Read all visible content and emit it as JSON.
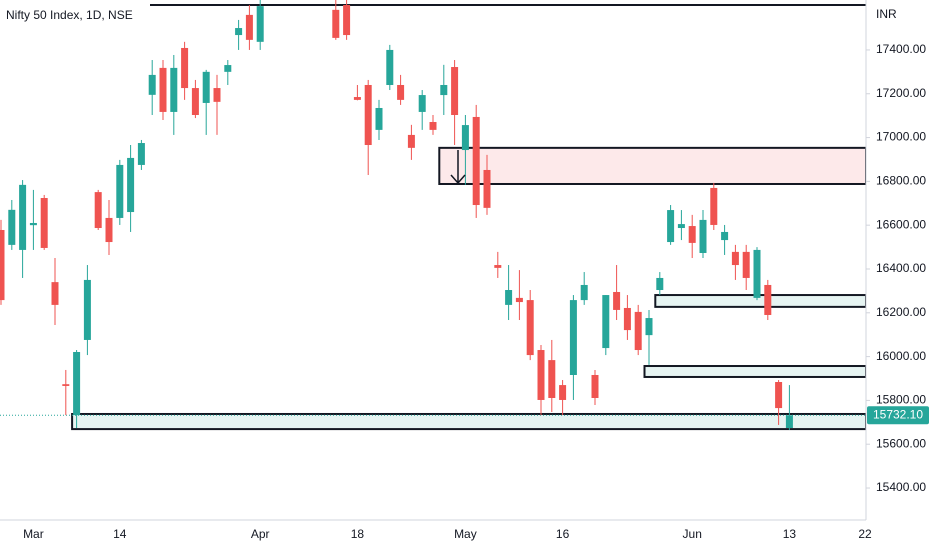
{
  "chart_data": {
    "type": "candlestick",
    "title": "Nifty 50 Index, 1D, NSE",
    "y_axis_label": "INR",
    "categories": [
      null,
      null,
      null,
      "Mar",
      null,
      null,
      null,
      null,
      null,
      null,
      null,
      "14",
      null,
      null,
      null,
      null,
      null,
      null,
      null,
      null,
      null,
      null,
      null,
      null,
      "Apr",
      null,
      null,
      null,
      null,
      null,
      null,
      null,
      null,
      "18",
      null,
      null,
      null,
      null,
      null,
      null,
      null,
      null,
      null,
      "May",
      null,
      null,
      null,
      null,
      null,
      null,
      null,
      null,
      "16",
      null,
      null,
      null,
      null,
      null,
      null,
      null,
      null,
      null,
      null,
      null,
      "Jun",
      null,
      null,
      null,
      null,
      null,
      null,
      null,
      null,
      "13",
      null,
      null,
      null,
      null,
      null,
      null,
      "22"
    ],
    "open": [
      16578,
      16510,
      16487,
      16600,
      16724,
      16340,
      15874,
      15733,
      16076,
      16751,
      16633,
      16633,
      16660,
      16875,
      17195,
      17318,
      17117,
      17409,
      17226,
      17158,
      17226,
      17300,
      17468,
      17560,
      17437,
      null,
      null,
      null,
      null,
      null,
      null,
      17583,
      17605,
      17185,
      17240,
      17035,
      17240,
      17240,
      17012,
      17117,
      17071,
      17194,
      17322,
      16943,
      17094,
      16852,
      16418,
      16236,
      16268,
      16258,
      16030,
      15984,
      15870,
      15916,
      16258,
      15916,
      16039,
      16295,
      16222,
      16204,
      16098,
      16304,
      16523,
      16587,
      16596,
      16473,
      16770,
      16532,
      16478,
      16478,
      16268,
      16327,
      15884,
      15674,
      null,
      null,
      null,
      null,
      null,
      null,
      null
    ],
    "high": [
      16624,
      16715,
      16806,
      16761,
      16738,
      16450,
      15939,
      16030,
      16418,
      16761,
      16715,
      16898,
      16966,
      16989,
      17354,
      17354,
      17377,
      17437,
      17263,
      17309,
      17286,
      17354,
      17537,
      17605,
      17628,
      null,
      null,
      null,
      null,
      null,
      null,
      17628,
      17628,
      17240,
      17263,
      17172,
      17423,
      17286,
      17058,
      17217,
      17103,
      17332,
      17354,
      17103,
      17149,
      16921,
      16478,
      16418,
      16395,
      16304,
      16053,
      16076,
      15893,
      16281,
      16386,
      15939,
      16281,
      16418,
      16281,
      16236,
      16213,
      16386,
      16692,
      16669,
      16647,
      16669,
      16793,
      16601,
      16510,
      16510,
      16500,
      16350,
      15893,
      15870,
      null,
      null,
      null,
      null,
      null,
      null,
      null
    ],
    "low": [
      16236,
      16487,
      16359,
      16487,
      16487,
      16144,
      15733,
      15674,
      16007,
      16578,
      16464,
      16601,
      16569,
      16852,
      17103,
      17080,
      17012,
      17172,
      17089,
      17012,
      17012,
      17240,
      17400,
      17400,
      17400,
      null,
      null,
      null,
      null,
      null,
      null,
      17446,
      17446,
      17170,
      16829,
      16989,
      17217,
      17149,
      16898,
      17035,
      17012,
      17103,
      16966,
      16784,
      16633,
      16647,
      16359,
      16167,
      16167,
      15984,
      15733,
      15747,
      15733,
      15802,
      16236,
      15779,
      16007,
      16167,
      16076,
      16007,
      15962,
      16281,
      16510,
      16532,
      16450,
      16450,
      16578,
      16464,
      16350,
      16304,
      16258,
      16167,
      15688,
      15665,
      null,
      null,
      null,
      null,
      null,
      null,
      null
    ],
    "close": [
      16258,
      16670,
      16784,
      16610,
      16496,
      16236,
      15866,
      16021,
      16350,
      16587,
      16523,
      16875,
      16907,
      16975,
      17286,
      17117,
      17318,
      17226,
      17103,
      17300,
      17163,
      17331,
      17500,
      17446,
      17600,
      null,
      null,
      null,
      null,
      null,
      null,
      17455,
      17468,
      17172,
      16966,
      17135,
      17400,
      17172,
      16953,
      17194,
      17035,
      17240,
      17103,
      17057,
      16692,
      16679,
      16405,
      16304,
      16249,
      16007,
      15802,
      15811,
      15802,
      16258,
      16327,
      15811,
      16281,
      16213,
      16121,
      16030,
      16176,
      16359,
      16669,
      16605,
      16519,
      16624,
      16601,
      16569,
      16418,
      16359,
      16487,
      16190,
      15765,
      15732.1,
      null,
      null,
      null,
      null,
      null,
      null,
      null
    ],
    "up_color": "#26a69a",
    "down_color": "#ef5350",
    "ylim": [
      15254,
      17628
    ],
    "yticks": [
      {
        "value": 17400,
        "label": "17400.00"
      },
      {
        "value": 17200,
        "label": "17200.00"
      },
      {
        "value": 17000,
        "label": "17000.00"
      },
      {
        "value": 16800,
        "label": "16800.00"
      },
      {
        "value": 16600,
        "label": "16600.00"
      },
      {
        "value": 16400,
        "label": "16400.00"
      },
      {
        "value": 16200,
        "label": "16200.00"
      },
      {
        "value": 16000,
        "label": "16000.00"
      },
      {
        "value": 15800,
        "label": "15800.00"
      },
      {
        "value": 15600,
        "label": "15600.00"
      },
      {
        "value": 15400,
        "label": "15400.00"
      }
    ],
    "levels": [
      17605
    ],
    "zones": [
      {
        "start": 41,
        "top": 16953,
        "bottom": 16788,
        "color": "#fde9ea"
      },
      {
        "start": 61,
        "top": 16281,
        "bottom": 16227,
        "color": "#e6f4f2"
      },
      {
        "start": 60,
        "top": 15957,
        "bottom": 15907,
        "color": "#e6f4f2"
      },
      {
        "start": 7,
        "top": 15738,
        "bottom": 15669,
        "color": "#e6f4f2"
      }
    ],
    "last_price": {
      "value": 15732.1,
      "label": "15732.10"
    }
  }
}
